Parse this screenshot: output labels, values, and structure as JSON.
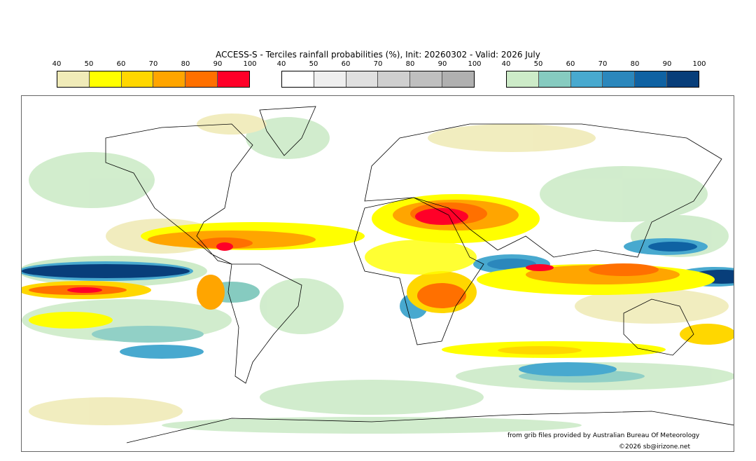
{
  "title": "ACCESS-S - Terciles rainfall probabilities (%), Init: 20260302 - Valid: 2026 July",
  "colorbars": [
    {
      "name": "above-normal",
      "ticks": [
        "40",
        "50",
        "60",
        "70",
        "80",
        "90",
        "100"
      ],
      "colors": [
        "#f0ebb8",
        "#ffff00",
        "#ffd700",
        "#ffa500",
        "#ff7000",
        "#ff0028"
      ]
    },
    {
      "name": "near-normal",
      "ticks": [
        "40",
        "50",
        "60",
        "70",
        "80",
        "90",
        "100"
      ],
      "colors": [
        "#ffffff",
        "#efefef",
        "#e0e0e0",
        "#cfcfcf",
        "#bfbfbf",
        "#b0b0b0"
      ]
    },
    {
      "name": "below-normal",
      "ticks": [
        "40",
        "50",
        "60",
        "70",
        "80",
        "90",
        "100"
      ],
      "colors": [
        "#cdebc8",
        "#86cbc0",
        "#48a9cf",
        "#2b87bc",
        "#0f62a3",
        "#083e7a"
      ]
    }
  ],
  "credits": {
    "source": "from grib files provided by Australian Bureau Of Meteorology",
    "copyright": "©2026 sb@irizone.net"
  }
}
